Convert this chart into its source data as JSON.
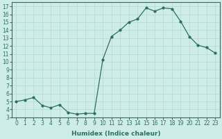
{
  "x": [
    0,
    1,
    2,
    3,
    4,
    5,
    6,
    7,
    8,
    9,
    10,
    11,
    12,
    13,
    14,
    15,
    16,
    17,
    18,
    19,
    20,
    21,
    22,
    23
  ],
  "y": [
    5.0,
    5.2,
    5.5,
    4.5,
    4.2,
    4.6,
    3.6,
    3.4,
    3.5,
    3.5,
    10.3,
    13.2,
    14.0,
    15.0,
    15.4,
    16.8,
    16.4,
    16.8,
    16.7,
    15.1,
    13.2,
    12.1,
    11.8,
    11.1
  ],
  "xlabel": "Humidex (Indice chaleur)",
  "xlim": [
    -0.5,
    23.5
  ],
  "ylim": [
    3,
    17.5
  ],
  "yticks": [
    3,
    4,
    5,
    6,
    7,
    8,
    9,
    10,
    11,
    12,
    13,
    14,
    15,
    16,
    17
  ],
  "xticks": [
    0,
    1,
    2,
    3,
    4,
    5,
    6,
    7,
    8,
    9,
    10,
    11,
    12,
    13,
    14,
    15,
    16,
    17,
    18,
    19,
    20,
    21,
    22,
    23
  ],
  "line_color": "#2d6e5e",
  "bg_color": "#ceecea",
  "grid_color": "#b8dbd8",
  "label_fontsize": 6.5,
  "tick_fontsize": 5.5
}
